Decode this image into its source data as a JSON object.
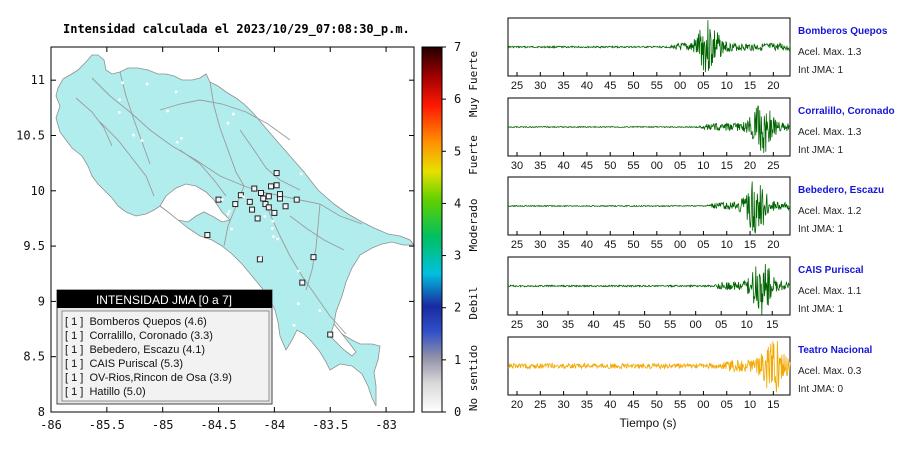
{
  "map": {
    "title": "Intensidad calculada el 2023/10/29_07:08:30_p.m.",
    "x_ticks": [
      "-86",
      "-85.5",
      "-85",
      "-84.5",
      "-84",
      "-83.5",
      "-83"
    ],
    "y_ticks": [
      "11",
      "10.5",
      "10",
      "9.5",
      "9",
      "8.5",
      "8"
    ],
    "xlim": [
      -86,
      -82.75
    ],
    "ylim": [
      8,
      11.3
    ],
    "colors": {
      "land": "#b2eded",
      "frame": "#000000",
      "legend_header": "#000000"
    },
    "legend": {
      "title": "INTENSIDAD JMA [0 a 7]",
      "rows": [
        "[ 1 ]  Bomberos Quepos (4.6)",
        "[ 1 ]  Corralillo, Coronado (3.3)",
        "[ 1 ]  Bebedero, Escazu (4.1)",
        "[ 1 ]  CAIS Puriscal (5.3)",
        "[ 1 ]  OV-Rios,Rincon de Osa (3.9)",
        "[ 1 ]  Hatillo (5.0)"
      ]
    }
  },
  "colorbar": {
    "ticks": [
      "7",
      "6",
      "5",
      "4",
      "3",
      "2",
      "1",
      "0"
    ],
    "labels": [
      "Muy Fuerte",
      "Fuerte",
      "Moderado",
      "Debil",
      "No sentido"
    ],
    "range": [
      0,
      7
    ]
  },
  "waveforms": {
    "xlabel": "Tiempo (s)",
    "stations": [
      {
        "name": "Bomberos Quepos",
        "acel": "Acel. Max. 1.3",
        "jma": "Int JMA: 1",
        "color": "#006400",
        "ticks": [
          "25",
          "30",
          "35",
          "40",
          "45",
          "50",
          "55",
          "00",
          "05",
          "10",
          "15",
          "20"
        ],
        "onset": 0.57,
        "peak": 0.71,
        "amp": 0.95,
        "noise": 0.03
      },
      {
        "name": "Corralillo, Coronado",
        "acel": "Acel. Max. 1.3",
        "jma": "Int JMA: 1",
        "color": "#006400",
        "ticks": [
          "30",
          "35",
          "40",
          "45",
          "50",
          "55",
          "00",
          "05",
          "10",
          "15",
          "20",
          "25"
        ],
        "onset": 0.67,
        "peak": 0.9,
        "amp": 0.95,
        "noise": 0.02
      },
      {
        "name": "Bebedero, Escazu",
        "acel": "Acel. Max. 1.2",
        "jma": "Int JMA: 1",
        "color": "#006400",
        "ticks": [
          "25",
          "30",
          "35",
          "40",
          "45",
          "50",
          "55",
          "00",
          "05",
          "10",
          "15",
          "20"
        ],
        "onset": 0.7,
        "peak": 0.88,
        "amp": 0.95,
        "noise": 0.02
      },
      {
        "name": "CAIS Puriscal",
        "acel": "Acel. Max. 1.1",
        "jma": "Int JMA: 1",
        "color": "#006400",
        "ticks": [
          "25",
          "30",
          "35",
          "40",
          "45",
          "50",
          "55",
          "00",
          "05",
          "10",
          "15"
        ],
        "onset": 0.72,
        "peak": 0.9,
        "amp": 0.95,
        "noise": 0.03
      },
      {
        "name": "Teatro Nacional",
        "acel": "Acel. Max. 0.3",
        "jma": "Int JMA: 0",
        "color": "#f2a800",
        "ticks": [
          "20",
          "25",
          "30",
          "35",
          "40",
          "45",
          "50",
          "55",
          "00",
          "05",
          "10",
          "15"
        ],
        "onset": 0.75,
        "peak": 0.94,
        "amp": 0.95,
        "noise": 0.1
      }
    ]
  },
  "chart_data": [
    {
      "type": "scatter",
      "title": "Intensidad calculada el 2023/10/29_07:08:30_p.m.",
      "xlim": [
        -86,
        -82.75
      ],
      "ylim": [
        8,
        11.3
      ],
      "x_ticks": [
        -86,
        -85.5,
        -85,
        -84.5,
        -84,
        -83.5,
        -83
      ],
      "y_ticks": [
        8,
        8.5,
        9,
        9.5,
        10,
        10.5,
        11
      ],
      "colorbar_range": [
        0,
        7
      ],
      "legend_placement": "bottom-left",
      "series": [
        {
          "values": [
            {
              "x": -84.18,
              "y": 10.02
            },
            {
              "x": -84.12,
              "y": 9.98
            },
            {
              "x": -84.05,
              "y": 9.95
            },
            {
              "x": -83.95,
              "y": 9.93
            },
            {
              "x": -84.22,
              "y": 9.9
            },
            {
              "x": -84.08,
              "y": 9.88
            },
            {
              "x": -83.98,
              "y": 10.05
            },
            {
              "x": -84.3,
              "y": 9.96
            },
            {
              "x": -84.0,
              "y": 9.8
            },
            {
              "x": -84.15,
              "y": 9.75
            },
            {
              "x": -83.9,
              "y": 9.86
            },
            {
              "x": -83.8,
              "y": 9.92
            },
            {
              "x": -84.35,
              "y": 9.88
            },
            {
              "x": -84.5,
              "y": 9.92
            },
            {
              "x": -84.6,
              "y": 9.6
            },
            {
              "x": -84.13,
              "y": 9.38
            },
            {
              "x": -83.65,
              "y": 9.4
            },
            {
              "x": -83.75,
              "y": 9.17
            },
            {
              "x": -83.5,
              "y": 8.7
            },
            {
              "x": -83.98,
              "y": 10.16
            },
            {
              "x": -84.05,
              "y": 9.85
            },
            {
              "x": -84.1,
              "y": 9.93
            },
            {
              "x": -83.95,
              "y": 9.97
            },
            {
              "x": -84.2,
              "y": 9.83
            },
            {
              "x": -84.03,
              "y": 10.04
            }
          ]
        }
      ]
    },
    {
      "type": "line",
      "xlabel": "Tiempo (s)",
      "series": [
        {
          "name": "Bomberos Quepos"
        },
        {
          "name": "Corralillo, Coronado"
        },
        {
          "name": "Bebedero, Escazu"
        },
        {
          "name": "CAIS Puriscal"
        },
        {
          "name": "Teatro Nacional"
        }
      ]
    }
  ]
}
